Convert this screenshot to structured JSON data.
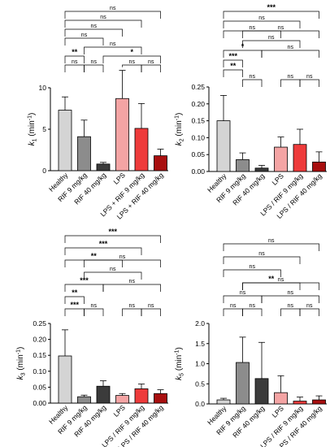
{
  "chart_data": [
    {
      "type": "bar",
      "ylabel": "k1 (min-1)",
      "ylabel_main": "k",
      "ylabel_sub": "1",
      "ylabel_unit_pre": " (min",
      "ylabel_unit_sup": "-1",
      "ylabel_unit_post": ")",
      "ylim": [
        0,
        10
      ],
      "yticks": [
        "0",
        "5",
        "10"
      ],
      "categories": [
        "Healthy",
        "RIF 9 mg/kg",
        "RIF 40 mg/kg",
        "LPS",
        "LPS + RIF 9 mg/kg",
        "LPS + RIF 40 mg/kg"
      ],
      "values": [
        7.3,
        4.1,
        0.8,
        8.7,
        5.1,
        1.8
      ],
      "errors": [
        1.6,
        2.0,
        0.2,
        3.4,
        3.0,
        0.8
      ],
      "colors": [
        "#d4d4d4",
        "#8c8c8c",
        "#3b3b3b",
        "#f4a4a4",
        "#ee3b3b",
        "#a80f0f"
      ],
      "comparisons": [
        {
          "from": 0,
          "to": 5,
          "label": "ns"
        },
        {
          "from": 0,
          "to": 4,
          "label": "ns"
        },
        {
          "from": 0,
          "to": 3,
          "label": "ns"
        },
        {
          "from": 0,
          "to": 2,
          "label": "ns"
        },
        {
          "from": 1,
          "to": 4,
          "label": "ns"
        },
        {
          "from": 0,
          "to": 1,
          "label": "**"
        },
        {
          "from": 2,
          "to": 5,
          "label": "*"
        },
        {
          "from": 0,
          "to": 1,
          "label": "ns"
        },
        {
          "from": 1,
          "to": 2,
          "label": "ns"
        },
        {
          "from": 3,
          "to": 4,
          "label": "ns"
        },
        {
          "from": 4,
          "to": 5,
          "label": "ns"
        }
      ]
    },
    {
      "type": "bar",
      "ylabel": "k2 (min-1)",
      "ylabel_main": "k",
      "ylabel_sub": "2",
      "ylabel_unit_pre": " (min",
      "ylabel_unit_sup": "-1",
      "ylabel_unit_post": ")",
      "ylim": [
        0,
        0.25
      ],
      "yticks": [
        "0.00",
        "0.05",
        "0.10",
        "0.15",
        "0.20",
        "0.25"
      ],
      "categories": [
        "Healthy",
        "RIF 9 mg/kg",
        "RIF 40 mg/kg",
        "LPS",
        "LPS / RIF 9 mg/kg",
        "LPS / RIF 40 mg/kg"
      ],
      "values": [
        0.15,
        0.035,
        0.01,
        0.072,
        0.08,
        0.028
      ],
      "errors": [
        0.075,
        0.02,
        0.008,
        0.03,
        0.045,
        0.03
      ],
      "colors": [
        "#d4d4d4",
        "#8c8c8c",
        "#3b3b3b",
        "#f4a4a4",
        "#ee3b3b",
        "#a80f0f"
      ],
      "comparisons": [
        {
          "from": 0,
          "to": 5,
          "label": "***"
        },
        {
          "from": 0,
          "to": 4,
          "label": "ns"
        },
        {
          "from": 0,
          "to": 3,
          "label": "ns"
        },
        {
          "from": 1,
          "to": 5,
          "label": "ns"
        },
        {
          "from": 1,
          "to": 4,
          "label": "ns"
        },
        {
          "from": 0,
          "to": 2,
          "label": "*"
        },
        {
          "from": 2,
          "to": 5,
          "label": "ns"
        },
        {
          "from": 0,
          "to": 1,
          "label": "***"
        },
        {
          "from": 0,
          "to": 1,
          "label": "**"
        },
        {
          "from": 1,
          "to": 2,
          "label": "ns"
        },
        {
          "from": 3,
          "to": 4,
          "label": "ns"
        },
        {
          "from": 4,
          "to": 5,
          "label": "ns"
        }
      ]
    },
    {
      "type": "bar",
      "ylabel": "k3 (min-1)",
      "ylabel_main": "k",
      "ylabel_sub": "3",
      "ylabel_unit_pre": " (min",
      "ylabel_unit_sup": "-1",
      "ylabel_unit_post": ")",
      "ylim": [
        0,
        0.25
      ],
      "yticks": [
        "0.00",
        "0.05",
        "0.10",
        "0.15",
        "0.20",
        "0.25"
      ],
      "categories": [
        "Healthy",
        "RIF 9 mg/kg",
        "RIF 40 mg/kg",
        "LPS",
        "LPS / RIF 9 mg/kg",
        "LPS / RIF 40 mg/kg"
      ],
      "values": [
        0.148,
        0.02,
        0.053,
        0.024,
        0.045,
        0.03
      ],
      "errors": [
        0.082,
        0.005,
        0.017,
        0.006,
        0.015,
        0.012
      ],
      "colors": [
        "#d4d4d4",
        "#8c8c8c",
        "#3b3b3b",
        "#f4a4a4",
        "#ee3b3b",
        "#a80f0f"
      ],
      "comparisons": [
        {
          "from": 0,
          "to": 5,
          "label": "***"
        },
        {
          "from": 0,
          "to": 4,
          "label": "***"
        },
        {
          "from": 0,
          "to": 3,
          "label": "**"
        },
        {
          "from": 1,
          "to": 5,
          "label": "ns"
        },
        {
          "from": 1,
          "to": 4,
          "label": "ns"
        },
        {
          "from": 0,
          "to": 2,
          "label": "***"
        },
        {
          "from": 2,
          "to": 5,
          "label": "ns"
        },
        {
          "from": 0,
          "to": 1,
          "label": "**"
        },
        {
          "from": 0,
          "to": 1,
          "label": "***"
        },
        {
          "from": 1,
          "to": 2,
          "label": "ns"
        },
        {
          "from": 3,
          "to": 4,
          "label": "ns"
        },
        {
          "from": 4,
          "to": 5,
          "label": "ns"
        }
      ]
    },
    {
      "type": "bar",
      "ylabel": "k5 (min-1)",
      "ylabel_main": "k",
      "ylabel_sub": "5",
      "ylabel_unit_pre": " (min",
      "ylabel_unit_sup": "-1",
      "ylabel_unit_post": ")",
      "ylim": [
        0,
        2.0
      ],
      "yticks": [
        "0.0",
        "0.5",
        "1.0",
        "1.5",
        "2.0"
      ],
      "categories": [
        "Healthy",
        "RIF 9 mg/kg",
        "RIF 40 mg/kg",
        "LPS",
        "LPS / RIF 9 mg/kg",
        "LPS / RIF 40 mg/kg"
      ],
      "values": [
        0.1,
        1.03,
        0.63,
        0.28,
        0.07,
        0.1
      ],
      "errors": [
        0.04,
        0.63,
        0.9,
        0.42,
        0.1,
        0.1
      ],
      "colors": [
        "#d4d4d4",
        "#8c8c8c",
        "#3b3b3b",
        "#f4a4a4",
        "#ee3b3b",
        "#a80f0f"
      ],
      "comparisons": [
        {
          "from": 0,
          "to": 5,
          "label": "ns"
        },
        {
          "from": 0,
          "to": 4,
          "label": "ns"
        },
        {
          "from": 0,
          "to": 3,
          "label": "ns"
        },
        {
          "from": 1,
          "to": 4,
          "label": "**"
        },
        {
          "from": 1,
          "to": 5,
          "label": "ns"
        },
        {
          "from": 0,
          "to": 2,
          "label": "ns"
        },
        {
          "from": 2,
          "to": 5,
          "label": "ns"
        },
        {
          "from": 0,
          "to": 1,
          "label": "ns"
        },
        {
          "from": 1,
          "to": 2,
          "label": "ns"
        },
        {
          "from": 3,
          "to": 4,
          "label": "ns"
        },
        {
          "from": 4,
          "to": 5,
          "label": "ns"
        }
      ]
    }
  ]
}
